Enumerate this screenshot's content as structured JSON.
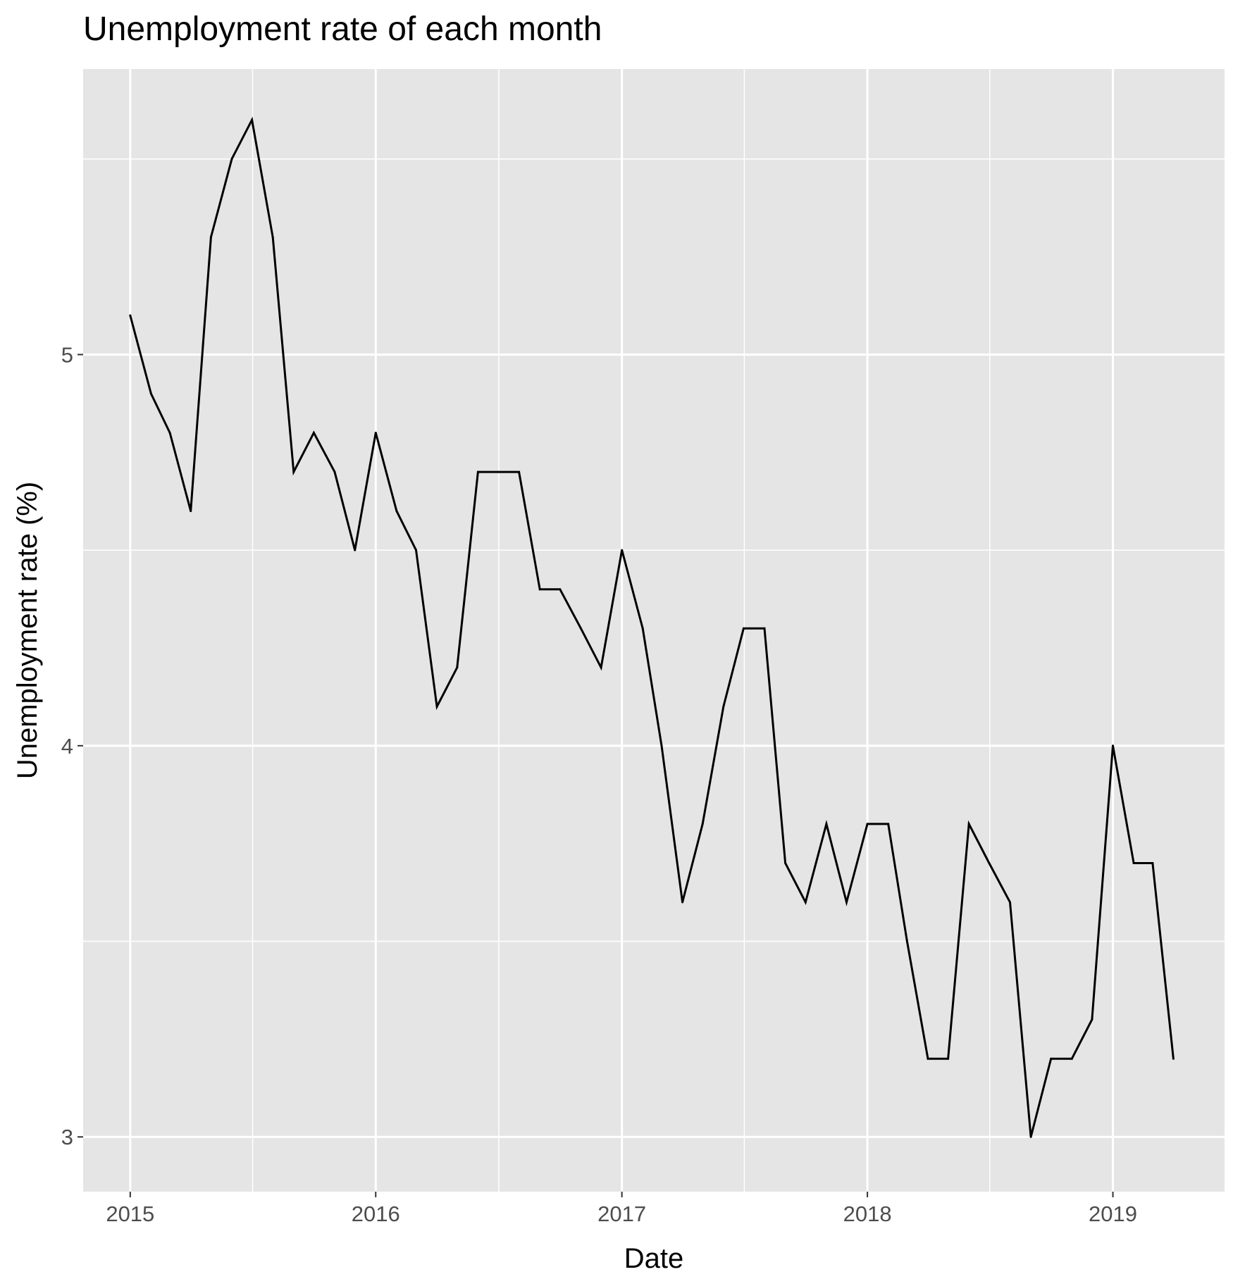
{
  "chart_data": {
    "type": "line",
    "title": "Unemployment rate of each month",
    "xlabel": "Date",
    "ylabel": "Unemployment rate (%)",
    "x_ticks": [
      "2015",
      "2016",
      "2017",
      "2018",
      "2019"
    ],
    "y_ticks": [
      "3",
      "4",
      "5"
    ],
    "xlim": [
      "2014-10-23",
      "2019-06-16"
    ],
    "ylim": [
      2.86,
      5.73
    ],
    "grid": true,
    "legend": "none",
    "colors": {
      "panel": "#e5e5e5",
      "grid": "#ffffff",
      "line": "#000000",
      "tick_text": "#4d4d4d"
    },
    "series": [
      {
        "x": [
          "2015-01",
          "2015-02",
          "2015-03",
          "2015-04",
          "2015-05",
          "2015-06",
          "2015-07",
          "2015-08",
          "2015-09",
          "2015-10",
          "2015-11",
          "2015-12",
          "2016-01",
          "2016-02",
          "2016-03",
          "2016-04",
          "2016-05",
          "2016-06",
          "2016-07",
          "2016-08",
          "2016-09",
          "2016-10",
          "2016-11",
          "2016-12",
          "2017-01",
          "2017-02",
          "2017-03",
          "2017-04",
          "2017-05",
          "2017-06",
          "2017-07",
          "2017-08",
          "2017-09",
          "2017-10",
          "2017-11",
          "2017-12",
          "2018-01",
          "2018-02",
          "2018-03",
          "2018-04",
          "2018-05",
          "2018-06",
          "2018-07",
          "2018-08",
          "2018-09",
          "2018-10",
          "2018-11",
          "2018-12",
          "2019-01",
          "2019-02",
          "2019-03",
          "2019-04"
        ],
        "values": [
          5.1,
          4.9,
          4.8,
          4.6,
          5.3,
          5.5,
          5.6,
          5.3,
          4.7,
          4.8,
          4.7,
          4.5,
          4.8,
          4.6,
          4.5,
          4.1,
          4.2,
          4.7,
          4.7,
          4.7,
          4.4,
          4.4,
          4.3,
          4.2,
          4.5,
          4.3,
          4.0,
          3.6,
          3.8,
          4.1,
          4.3,
          4.3,
          3.7,
          3.6,
          3.8,
          3.6,
          3.8,
          3.8,
          3.5,
          3.2,
          3.2,
          3.8,
          3.7,
          3.6,
          3.0,
          3.2,
          3.2,
          3.3,
          4.0,
          3.7,
          3.7,
          3.2
        ]
      }
    ]
  }
}
